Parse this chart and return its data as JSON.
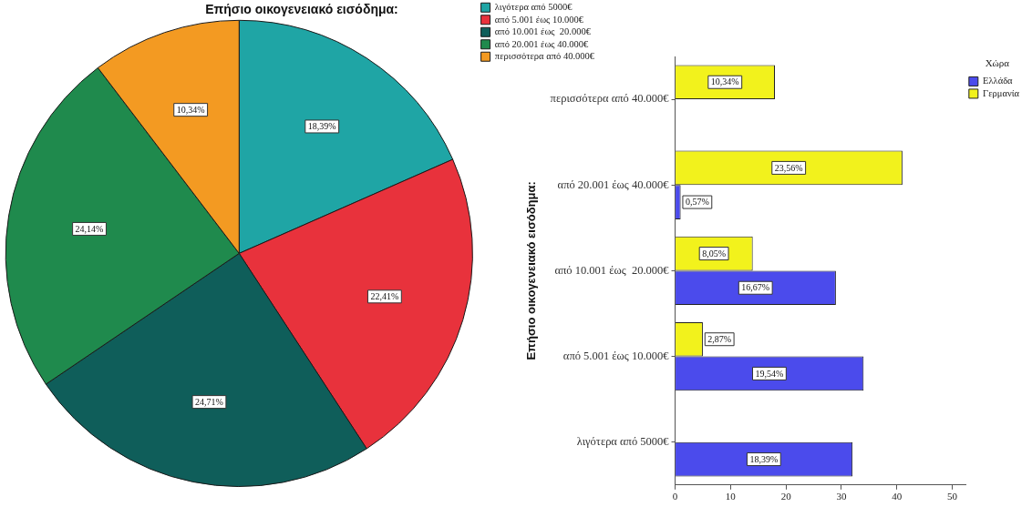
{
  "chart_data": [
    {
      "type": "pie",
      "title": "Επήσιο οικογενειακό εισόδημα:",
      "categories": [
        "λιγότερα από 5000€",
        "από 5.001 έως 10.000€",
        "από 10.001 έως  20.000€",
        "από 20.001 έως 40.000€",
        "περισσότερα από 40.000€"
      ],
      "values": [
        18.39,
        22.41,
        24.71,
        24.14,
        10.34
      ],
      "value_labels": [
        "18,39%",
        "22,41%",
        "24,71%",
        "24,14%",
        "10,34%"
      ],
      "colors": [
        "#1fa5a5",
        "#e8323c",
        "#0f5e5a",
        "#1f8a4d",
        "#f39a22"
      ],
      "legend": "top right"
    },
    {
      "type": "bar",
      "orientation": "horizontal",
      "ylabel": "Επήσιο οικογενειακό εισόδημα:",
      "legend_title": "Χώρα",
      "categories": [
        "περισσότερα από 40.000€",
        "από 20.001 έως 40.000€",
        "από 10.001 έως  20.000€",
        "από 5.001 έως 10.000€",
        "λιγότερα από 5000€"
      ],
      "series": [
        {
          "name": "Ελλάδα",
          "color": "#4b4bec",
          "values": [
            null,
            1,
            29,
            34,
            32
          ]
        },
        {
          "name": "Γερμανία",
          "color": "#f2f21c",
          "values": [
            18,
            41,
            14,
            5,
            null
          ]
        }
      ],
      "annotations": [
        {
          "text": "10,34%",
          "x": 9,
          "y": "περισσότερα από 40.000€"
        },
        {
          "text": "23,56%",
          "x": 20.5,
          "y": "από 20.001 έως 40.000€"
        },
        {
          "text": "0,57%",
          "x": 4,
          "y": "από 20.001 έως 40.000€"
        },
        {
          "text": "8,05%",
          "x": 7,
          "y": "από 10.001 έως  20.000€"
        },
        {
          "text": "16,67%",
          "x": 14.5,
          "y": "από 10.001 έως  20.000€"
        },
        {
          "text": "2,87%",
          "x": 8,
          "y": "από 5.001 έως 10.000€"
        },
        {
          "text": "19,54%",
          "x": 17,
          "y": "από 5.001 έως 10.000€"
        },
        {
          "text": "18,39%",
          "x": 16,
          "y": "λιγότερα από 5000€"
        }
      ],
      "xlim": [
        0,
        52.5
      ],
      "xticks": [
        0,
        10,
        20,
        30,
        40,
        50
      ],
      "legend": "top right"
    }
  ]
}
